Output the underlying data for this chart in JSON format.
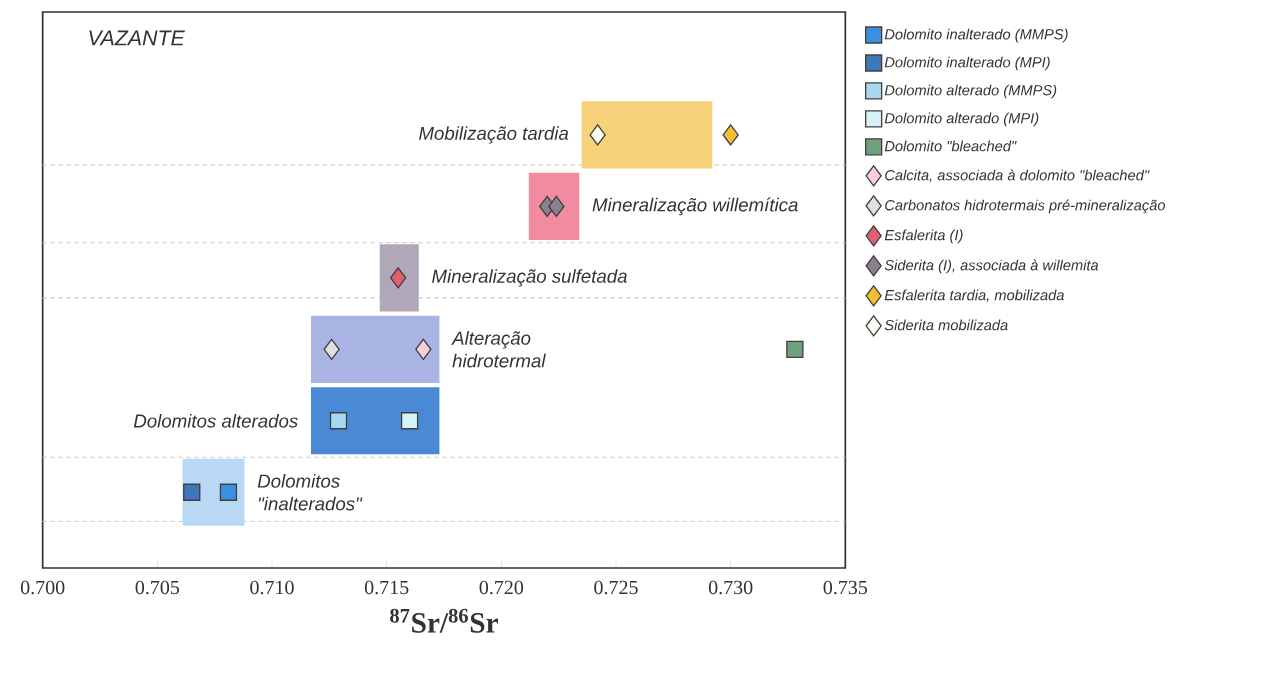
{
  "chart_data": {
    "type": "scatter",
    "title": "VAZANTE",
    "xlabel": "$^{87}$Sr/$^{86}$Sr",
    "orientation": "horizontal",
    "categories": [
      "Mobilização tardia",
      "Mineralização willemítica",
      "Mineralização sulfetada",
      "Alteração hidrotermal",
      "Dolomitos alterados",
      "Dolomitos \"inalterados\""
    ],
    "xlim": [
      0.7,
      0.735
    ],
    "xticks": [
      {
        "value": 0.7,
        "label": "0.700"
      },
      {
        "value": 0.705,
        "label": "0.705"
      },
      {
        "value": 0.71,
        "label": "0.710"
      },
      {
        "value": 0.715,
        "label": "0.715"
      },
      {
        "value": 0.72,
        "label": "0.720"
      },
      {
        "value": 0.725,
        "label": "0.725"
      },
      {
        "value": 0.73,
        "label": "0.730"
      },
      {
        "value": 0.735,
        "label": "0.735"
      }
    ],
    "legend": "right",
    "series": [
      {
        "type": "bar",
        "base": [
          0.7235,
          0.7212,
          0.7147,
          0.7117,
          0.7117,
          0.7061
        ],
        "values": [
          0.0057,
          0.0022,
          0.0017,
          0.0056,
          0.0056,
          0.0027
        ],
        "colors": [
          "#f8d27a",
          "#f28aa0",
          "#b0a8b8",
          "#aab4e4",
          "#4a8ad4",
          "#b8d8f4"
        ]
      },
      {
        "name": "Dolomito inalterado (MMPS)",
        "color": "#3b8fe0",
        "marker": "square",
        "values": [
          null,
          null,
          null,
          null,
          null,
          0.7081
        ]
      },
      {
        "name": "Dolomito inalterado (MPI)",
        "color": "#3f78b8",
        "marker": "square",
        "values": [
          null,
          null,
          null,
          null,
          null,
          0.7065
        ]
      },
      {
        "name": "Dolomito alterado (MMPS)",
        "color": "#a8d8f0",
        "marker": "square",
        "values": [
          null,
          null,
          null,
          null,
          0.7129,
          null
        ]
      },
      {
        "name": "Dolomito alterado (MPI)",
        "color": "#d8f2fa",
        "marker": "square",
        "values": [
          null,
          null,
          null,
          null,
          0.716,
          null
        ]
      },
      {
        "name": "Dolomito \"bleached\"",
        "color": "#6fa27a",
        "marker": "square",
        "values": [
          null,
          null,
          null,
          0.7328,
          null,
          null
        ]
      },
      {
        "name": "Calcita, associada à dolomito \"bleached\"",
        "color": "#f8d0d8",
        "marker": "diamond",
        "values": [
          null,
          null,
          null,
          0.7166,
          null,
          null
        ]
      },
      {
        "name": "Carbonatos hidrotermais pré-mineralização",
        "color": "#e0e0e4",
        "marker": "diamond",
        "values": [
          null,
          null,
          null,
          0.7126,
          null,
          null
        ]
      },
      {
        "name": "Esfalerita (I)",
        "color": "#e06070",
        "marker": "diamond",
        "values": [
          null,
          null,
          0.7155,
          null,
          null,
          null
        ]
      },
      {
        "name": "Siderita (I), associada à willemita",
        "color": "#8a8090",
        "marker": "diamond",
        "values": [
          null,
          0.722,
          null,
          null,
          null,
          null
        ]
      },
      {
        "color": "#8a8090",
        "marker": "diamond",
        "values": [
          null,
          0.7224,
          null,
          null,
          null,
          null
        ]
      },
      {
        "name": "Esfalerita  tardia, mobilizada",
        "color": "#f5c030",
        "marker": "diamond",
        "values": [
          0.73,
          null,
          null,
          null,
          null,
          null
        ]
      },
      {
        "name": "Siderita mobilizada",
        "color": "#fcfcf0",
        "marker": "diamond",
        "values": [
          0.7242,
          null,
          null,
          null,
          null,
          null
        ]
      }
    ]
  }
}
